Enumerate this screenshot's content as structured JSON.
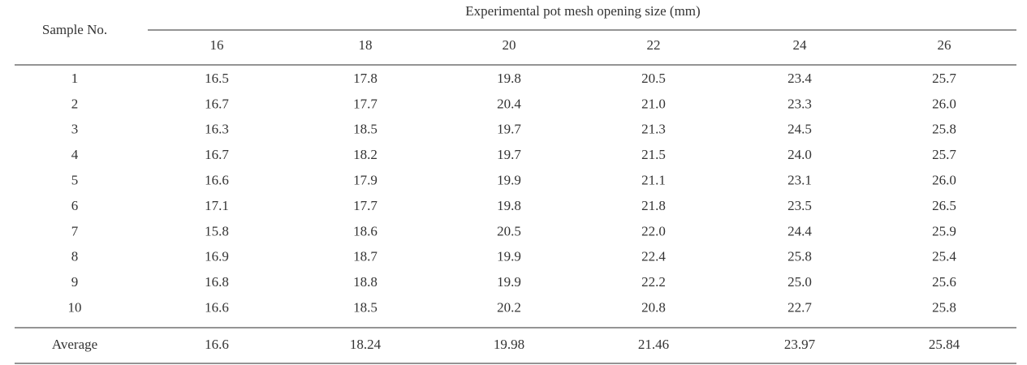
{
  "table": {
    "row_header": "Sample No.",
    "group_header": "Experimental pot mesh opening size (mm)",
    "columns": [
      "16",
      "18",
      "20",
      "22",
      "24",
      "26"
    ],
    "rows": [
      [
        "1",
        "16.5",
        "17.8",
        "19.8",
        "20.5",
        "23.4",
        "25.7"
      ],
      [
        "2",
        "16.7",
        "17.7",
        "20.4",
        "21.0",
        "23.3",
        "26.0"
      ],
      [
        "3",
        "16.3",
        "18.5",
        "19.7",
        "21.3",
        "24.5",
        "25.8"
      ],
      [
        "4",
        "16.7",
        "18.2",
        "19.7",
        "21.5",
        "24.0",
        "25.7"
      ],
      [
        "5",
        "16.6",
        "17.9",
        "19.9",
        "21.1",
        "23.1",
        "26.0"
      ],
      [
        "6",
        "17.1",
        "17.7",
        "19.8",
        "21.8",
        "23.5",
        "26.5"
      ],
      [
        "7",
        "15.8",
        "18.6",
        "20.5",
        "22.0",
        "24.4",
        "25.9"
      ],
      [
        "8",
        "16.9",
        "18.7",
        "19.9",
        "22.4",
        "25.8",
        "25.4"
      ],
      [
        "9",
        "16.8",
        "18.8",
        "19.9",
        "22.2",
        "25.0",
        "25.6"
      ],
      [
        "10",
        "16.6",
        "18.5",
        "20.2",
        "20.8",
        "22.7",
        "25.8"
      ]
    ],
    "footer": [
      "Average",
      "16.6",
      "18.24",
      "19.98",
      "21.46",
      "23.97",
      "25.84"
    ]
  }
}
